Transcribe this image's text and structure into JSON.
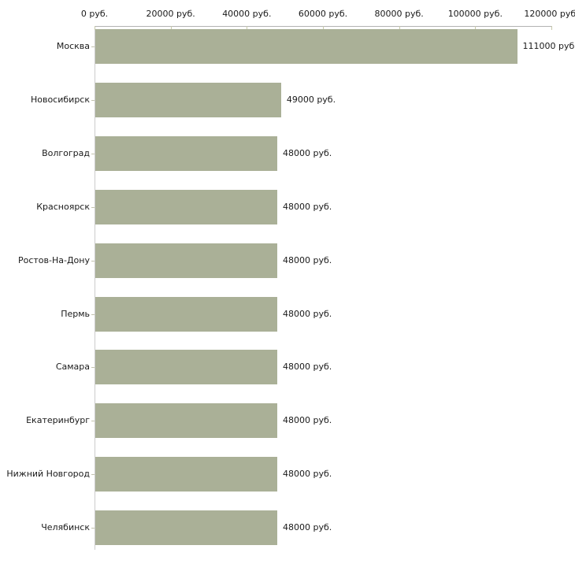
{
  "chart_data": {
    "type": "bar",
    "orientation": "horizontal",
    "title": "",
    "categories": [
      "Москва",
      "Новосибирск",
      "Волгоград",
      "Красноярск",
      "Ростов-На-Дону",
      "Пермь",
      "Самара",
      "Екатеринбург",
      "Нижний Новгород",
      "Челябинск"
    ],
    "values": [
      111000,
      49000,
      48000,
      48000,
      48000,
      48000,
      48000,
      48000,
      48000,
      48000
    ],
    "value_labels": [
      "111000 руб.",
      "49000 руб.",
      "48000 руб.",
      "48000 руб.",
      "48000 руб.",
      "48000 руб.",
      "48000 руб.",
      "48000 руб.",
      "48000 руб.",
      "48000 руб."
    ],
    "x_tick_labels": [
      "0 руб.",
      "20000 руб.",
      "40000 руб.",
      "60000 руб.",
      "80000 руб.",
      "100000 руб.",
      "120000 руб."
    ],
    "x_tick_values": [
      0,
      20000,
      40000,
      60000,
      80000,
      100000,
      120000
    ],
    "xlim": [
      0,
      120000
    ],
    "unit": "руб.",
    "legend": null,
    "grid": false,
    "axis_position": "top",
    "colors": {
      "bar": "#aab097",
      "x_axis_line": "#b2b2b2",
      "y_axis_line": "#cccccc",
      "tick_mark": "#c6c8ab",
      "text": "#1a1a1a",
      "background": "#ffffff"
    }
  }
}
